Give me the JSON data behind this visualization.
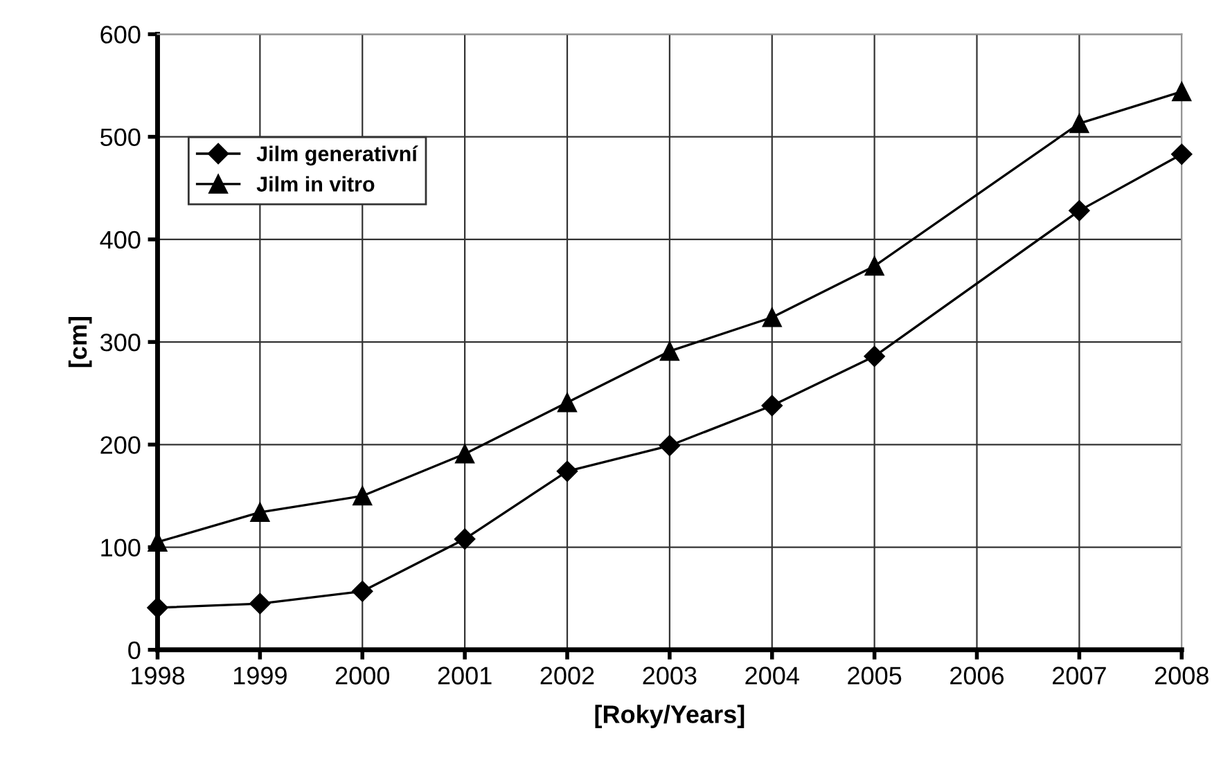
{
  "chart_data": {
    "type": "line",
    "xlabel": "[Roky/Years]",
    "ylabel": "[cm]",
    "xlim": [
      1998,
      2008
    ],
    "xticks": [
      1998,
      1999,
      2000,
      2001,
      2002,
      2003,
      2004,
      2005,
      2006,
      2007,
      2008
    ],
    "ylim": [
      0,
      600
    ],
    "yticks": [
      0,
      100,
      200,
      300,
      400,
      500,
      600
    ],
    "grid": true,
    "legend": "top left",
    "series": [
      {
        "name": "Jilm generativní",
        "color": "#000000",
        "marker": "diamond",
        "x": [
          1998,
          1999,
          2000,
          2001,
          2002,
          2003,
          2004,
          2005,
          2007,
          2008
        ],
        "values": [
          41,
          45,
          57,
          108,
          174,
          199,
          238,
          286,
          428,
          483
        ]
      },
      {
        "name": "Jilm in vitro",
        "color": "#000000",
        "marker": "triangle",
        "x": [
          1998,
          1999,
          2000,
          2001,
          2002,
          2003,
          2004,
          2005,
          2007,
          2008
        ],
        "values": [
          105,
          134,
          150,
          191,
          241,
          291,
          324,
          374,
          513,
          544
        ]
      }
    ]
  }
}
